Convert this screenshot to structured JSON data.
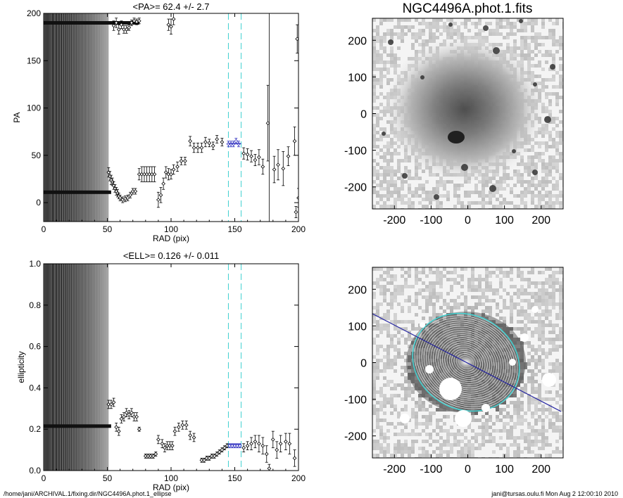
{
  "footer": {
    "left": "/home/jani/ARCHIVAL.1/fixing.dir/NGC4496A.phot.1_ellipse",
    "right": "jani@tursas.oulu.fi  Mon Aug  2 12:00:10 2010"
  },
  "chart_data": [
    {
      "type": "scatter",
      "panel": "pa",
      "title": "<PA>=  62.4 +/-   2.7",
      "xlabel": "RAD (pix)",
      "ylabel": "PA",
      "xlim": [
        0,
        200
      ],
      "ylim": [
        -20,
        200
      ],
      "xticks": [
        0,
        50,
        100,
        150,
        200
      ],
      "yticks": [
        0,
        50,
        100,
        150,
        200
      ],
      "mean_value": 62.4,
      "mean_error": 2.7,
      "fit_range": [
        145,
        155
      ],
      "inner_cutoff": 51,
      "bands": [
        190,
        11
      ],
      "vertical_line": 177,
      "accent_colors": {
        "fit_band": "#40d0d0",
        "fit_points": "#3030c0",
        "markers": "#000000"
      },
      "points": [
        [
          51,
          32,
          5
        ],
        [
          52,
          28,
          5
        ],
        [
          53,
          24,
          5
        ],
        [
          54,
          22,
          4
        ],
        [
          55,
          18,
          4
        ],
        [
          56,
          15,
          4
        ],
        [
          57,
          12,
          4
        ],
        [
          58,
          10,
          4
        ],
        [
          59,
          7,
          3
        ],
        [
          60,
          5,
          3
        ],
        [
          62,
          3,
          3
        ],
        [
          64,
          4,
          3
        ],
        [
          66,
          5,
          3
        ],
        [
          68,
          8,
          3
        ],
        [
          70,
          12,
          3
        ],
        [
          72,
          12,
          3
        ],
        [
          75,
          30,
          6
        ],
        [
          77,
          30,
          8
        ],
        [
          79,
          30,
          8
        ],
        [
          81,
          30,
          8
        ],
        [
          83,
          30,
          8
        ],
        [
          85,
          30,
          8
        ],
        [
          87,
          30,
          8
        ],
        [
          90,
          3,
          8
        ],
        [
          92,
          8,
          8
        ],
        [
          94,
          20,
          6
        ],
        [
          96,
          32,
          6
        ],
        [
          98,
          30,
          6
        ],
        [
          100,
          30,
          5
        ],
        [
          102,
          35,
          5
        ],
        [
          105,
          38,
          5
        ],
        [
          108,
          44,
          4
        ],
        [
          111,
          44,
          4
        ],
        [
          115,
          65,
          5
        ],
        [
          118,
          58,
          5
        ],
        [
          121,
          58,
          5
        ],
        [
          124,
          58,
          5
        ],
        [
          127,
          64,
          5
        ],
        [
          130,
          63,
          4
        ],
        [
          133,
          60,
          4
        ],
        [
          136,
          67,
          4
        ],
        [
          140,
          64,
          4
        ],
        [
          145,
          62,
          3
        ],
        [
          147,
          62,
          3
        ],
        [
          149,
          62,
          3
        ],
        [
          151,
          65,
          3
        ],
        [
          153,
          62,
          3
        ],
        [
          157,
          52,
          6
        ],
        [
          160,
          51,
          6
        ],
        [
          163,
          49,
          6
        ],
        [
          166,
          45,
          6
        ],
        [
          169,
          48,
          8
        ],
        [
          172,
          38,
          8
        ],
        [
          176,
          84,
          40
        ],
        [
          181,
          35,
          14
        ],
        [
          184,
          40,
          16
        ],
        [
          188,
          36,
          18
        ],
        [
          192,
          49,
          10
        ],
        [
          197,
          65,
          15
        ],
        [
          198,
          -10,
          6
        ],
        [
          200,
          5,
          10
        ],
        [
          55,
          187,
          5
        ],
        [
          57,
          190,
          5
        ],
        [
          59,
          183,
          5
        ],
        [
          61,
          188,
          4
        ],
        [
          63,
          183,
          4
        ],
        [
          65,
          183,
          4
        ],
        [
          67,
          185,
          3
        ],
        [
          69,
          190,
          3
        ],
        [
          71,
          192,
          3
        ],
        [
          73,
          191,
          3
        ],
        [
          75,
          192,
          3
        ],
        [
          98,
          188,
          6
        ],
        [
          100,
          186,
          8
        ],
        [
          102,
          194,
          6
        ],
        [
          199,
          173,
          15
        ]
      ]
    },
    {
      "type": "scatter",
      "panel": "ell",
      "title": "<ELL>= 0.126 +/-  0.011",
      "xlabel": "RAD (pix)",
      "ylabel": "ellipticity",
      "xlim": [
        0,
        200
      ],
      "ylim": [
        0.0,
        1.0
      ],
      "xticks": [
        0,
        50,
        100,
        150,
        200
      ],
      "yticks": [
        0.0,
        0.2,
        0.4,
        0.6,
        0.8,
        1.0
      ],
      "mean_value": 0.126,
      "mean_error": 0.011,
      "fit_range": [
        145,
        155
      ],
      "inner_cutoff": 51,
      "bands": [
        0.215
      ],
      "points": [
        [
          51,
          0.32,
          0.02
        ],
        [
          53,
          0.32,
          0.02
        ],
        [
          55,
          0.33,
          0.02
        ],
        [
          57,
          0.21,
          0.02
        ],
        [
          59,
          0.19,
          0.02
        ],
        [
          61,
          0.25,
          0.02
        ],
        [
          63,
          0.26,
          0.02
        ],
        [
          65,
          0.28,
          0.02
        ],
        [
          67,
          0.27,
          0.02
        ],
        [
          69,
          0.28,
          0.02
        ],
        [
          71,
          0.26,
          0.02
        ],
        [
          73,
          0.26,
          0.02
        ],
        [
          75,
          0.2,
          0.01
        ],
        [
          80,
          0.07,
          0.01
        ],
        [
          82,
          0.07,
          0.01
        ],
        [
          84,
          0.07,
          0.01
        ],
        [
          86,
          0.07,
          0.01
        ],
        [
          88,
          0.08,
          0.01
        ],
        [
          90,
          0.15,
          0.02
        ],
        [
          93,
          0.13,
          0.02
        ],
        [
          95,
          0.11,
          0.02
        ],
        [
          97,
          0.12,
          0.02
        ],
        [
          99,
          0.12,
          0.02
        ],
        [
          101,
          0.12,
          0.02
        ],
        [
          103,
          0.19,
          0.02
        ],
        [
          106,
          0.21,
          0.02
        ],
        [
          109,
          0.22,
          0.02
        ],
        [
          112,
          0.22,
          0.02
        ],
        [
          115,
          0.17,
          0.02
        ],
        [
          118,
          0.16,
          0.02
        ],
        [
          124,
          0.05,
          0.01
        ],
        [
          126,
          0.05,
          0.01
        ],
        [
          128,
          0.06,
          0.01
        ],
        [
          130,
          0.06,
          0.01
        ],
        [
          132,
          0.07,
          0.01
        ],
        [
          134,
          0.07,
          0.01
        ],
        [
          136,
          0.08,
          0.01
        ],
        [
          138,
          0.09,
          0.01
        ],
        [
          140,
          0.1,
          0.01
        ],
        [
          142,
          0.11,
          0.01
        ],
        [
          144,
          0.12,
          0.01
        ],
        [
          146,
          0.12,
          0.01
        ],
        [
          148,
          0.12,
          0.01
        ],
        [
          150,
          0.12,
          0.01
        ],
        [
          152,
          0.12,
          0.01
        ],
        [
          154,
          0.12,
          0.01
        ],
        [
          157,
          0.11,
          0.02
        ],
        [
          160,
          0.12,
          0.02
        ],
        [
          163,
          0.13,
          0.03
        ],
        [
          166,
          0.14,
          0.03
        ],
        [
          169,
          0.13,
          0.04
        ],
        [
          172,
          0.12,
          0.04
        ],
        [
          175,
          0.08,
          0.04
        ],
        [
          177,
          0.01,
          0.02
        ],
        [
          180,
          0.15,
          0.04
        ],
        [
          183,
          0.1,
          0.04
        ],
        [
          186,
          0.13,
          0.04
        ],
        [
          190,
          0.14,
          0.04
        ],
        [
          193,
          0.13,
          0.05
        ],
        [
          197,
          0.06,
          0.04
        ]
      ]
    },
    {
      "type": "heatmap",
      "panel": "image-top",
      "title": "NGC4496A.phot.1.fits",
      "xlim": [
        -260,
        260
      ],
      "ylim": [
        -260,
        260
      ],
      "xticks": [
        -200,
        -100,
        0,
        100,
        200
      ],
      "yticks": [
        -200,
        -100,
        0,
        100,
        200
      ]
    },
    {
      "type": "heatmap",
      "panel": "image-bottom",
      "title": "",
      "xlim": [
        -260,
        260
      ],
      "ylim": [
        -260,
        260
      ],
      "xticks": [
        -200,
        -100,
        0,
        100,
        200
      ],
      "yticks": [
        -200,
        -100,
        0,
        100,
        200
      ],
      "position_angle_line_colour": "#2020a0",
      "outer_ellipse_colour": "#40d0d0"
    }
  ]
}
